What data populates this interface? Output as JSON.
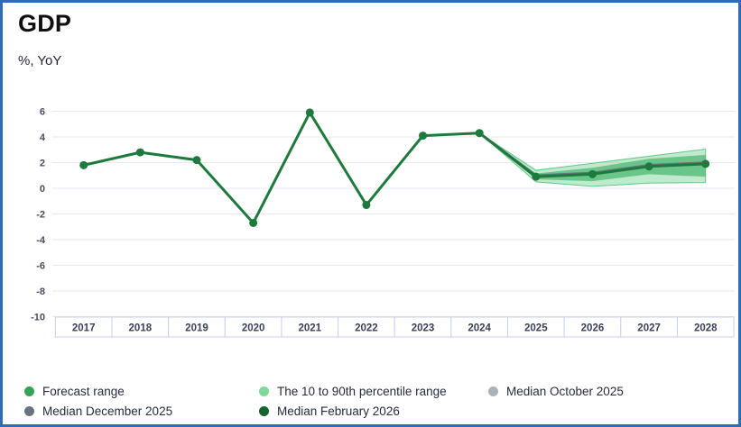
{
  "header": {
    "title": "GDP",
    "subtitle": "%, YoY"
  },
  "chart_data": {
    "type": "line",
    "title": "GDP",
    "ylabel": "%, YoY",
    "categories": [
      "2017",
      "2018",
      "2019",
      "2020",
      "2021",
      "2022",
      "2023",
      "2024",
      "2025",
      "2026",
      "2027",
      "2028"
    ],
    "ylim": [
      -10,
      6
    ],
    "yticks": [
      6,
      4,
      2,
      0,
      -2,
      -4,
      -6,
      -8,
      -10
    ],
    "grid": true,
    "legend_position": "bottom",
    "series": [
      {
        "name": "The 10 to 90th percentile range",
        "type": "band",
        "x_start": "2024",
        "upper": [
          4.3,
          1.4,
          1.95,
          2.5,
          3.05
        ],
        "lower": [
          4.3,
          0.5,
          0.15,
          0.4,
          0.45
        ],
        "color": "#7fd69a",
        "fill_opacity": 0.5,
        "edge_color": "#57c07f"
      },
      {
        "name": "Forecast range",
        "type": "band",
        "x_start": "2024",
        "upper": [
          4.3,
          1.15,
          1.6,
          2.3,
          2.6
        ],
        "lower": [
          4.3,
          0.7,
          0.55,
          1.1,
          0.9
        ],
        "color": "#4cb873",
        "fill_opacity": 0.75,
        "edge_color": "none"
      },
      {
        "name": "Median October 2025",
        "type": "line",
        "x_start": "2024",
        "values": [
          4.3,
          1.0,
          1.15,
          1.75,
          1.95
        ],
        "color": "#b0b8c2",
        "width": 2.6,
        "markers": false
      },
      {
        "name": "Median December 2025",
        "type": "line",
        "x_start": "2024",
        "values": [
          4.3,
          1.0,
          1.2,
          1.8,
          2.0
        ],
        "color": "#6b7380",
        "width": 2.6,
        "markers": false
      },
      {
        "name": "Median February 2026",
        "type": "line",
        "x_start": "2017",
        "values": [
          1.8,
          2.8,
          2.2,
          -2.7,
          5.9,
          -1.3,
          4.1,
          4.3,
          0.9,
          1.1,
          1.7,
          1.9
        ],
        "color": "#1d7a3c",
        "width": 3,
        "markers": true
      }
    ]
  },
  "legend": {
    "items": [
      {
        "label": "Forecast range",
        "color": "#33a457"
      },
      {
        "label": "The 10 to 90th percentile range",
        "color": "#7ed99b"
      },
      {
        "label": "Median October 2025",
        "color": "#aab3bd"
      },
      {
        "label": "Median December 2025",
        "color": "#6a7280"
      },
      {
        "label": "Median February 2026",
        "color": "#15632e"
      }
    ]
  },
  "colors": {
    "frame_border": "#2e6db6",
    "gridline": "#e8e8f0",
    "axis_cell_border": "#c9d2ec",
    "tick_text": "#3a4059"
  }
}
